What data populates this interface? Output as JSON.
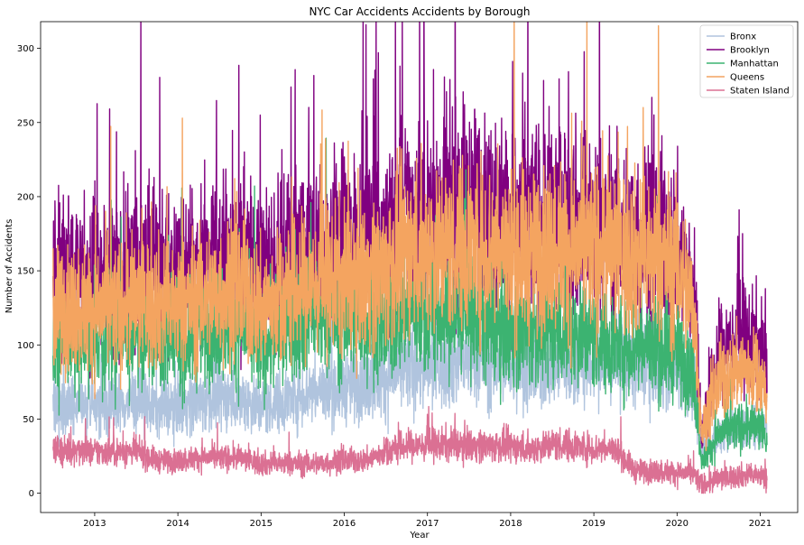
{
  "chart_data": {
    "type": "line",
    "title": "NYC Car Accidents Accidents by Borough",
    "xlabel": "Year",
    "ylabel": "Number of Accidents",
    "xlim": [
      2012.35,
      2021.45
    ],
    "ylim": [
      -13,
      318
    ],
    "xticks": [
      2013,
      2014,
      2015,
      2016,
      2017,
      2018,
      2019,
      2020,
      2021
    ],
    "yticks": [
      0,
      50,
      100,
      150,
      200,
      250,
      300
    ],
    "grid": false,
    "legend_position": "top-right",
    "x": [
      2012.5,
      2012.75,
      2013.0,
      2013.25,
      2013.5,
      2013.75,
      2014.0,
      2014.25,
      2014.5,
      2014.75,
      2015.0,
      2015.25,
      2015.5,
      2015.75,
      2016.0,
      2016.25,
      2016.5,
      2016.75,
      2017.0,
      2017.25,
      2017.5,
      2017.75,
      2018.0,
      2018.25,
      2018.5,
      2018.75,
      2019.0,
      2019.25,
      2019.5,
      2019.75,
      2020.0,
      2020.2,
      2020.3,
      2020.5,
      2020.75,
      2021.0,
      2021.08
    ],
    "series": [
      {
        "name": "Bronx",
        "color": "#b0c4de",
        "values": [
          60,
          58,
          60,
          60,
          62,
          58,
          60,
          62,
          65,
          65,
          58,
          62,
          68,
          70,
          72,
          75,
          78,
          85,
          85,
          88,
          90,
          88,
          88,
          85,
          88,
          88,
          88,
          88,
          90,
          90,
          88,
          70,
          30,
          40,
          45,
          45,
          42
        ]
      },
      {
        "name": "Brooklyn",
        "color": "#800080",
        "values": [
          150,
          152,
          150,
          150,
          155,
          150,
          152,
          155,
          160,
          165,
          150,
          155,
          165,
          168,
          170,
          172,
          180,
          190,
          190,
          192,
          195,
          190,
          188,
          185,
          190,
          185,
          180,
          178,
          175,
          172,
          165,
          140,
          40,
          95,
          105,
          100,
          80
        ]
      },
      {
        "name": "Manhattan",
        "color": "#3cb371",
        "values": [
          100,
          102,
          105,
          105,
          110,
          105,
          100,
          110,
          115,
          115,
          100,
          110,
          120,
          120,
          118,
          115,
          115,
          125,
          120,
          118,
          120,
          115,
          112,
          110,
          112,
          110,
          105,
          100,
          100,
          100,
          95,
          80,
          20,
          40,
          45,
          45,
          35
        ]
      },
      {
        "name": "Queens",
        "color": "#f4a460",
        "values": [
          125,
          125,
          125,
          125,
          130,
          128,
          125,
          132,
          135,
          138,
          125,
          132,
          140,
          142,
          145,
          148,
          150,
          165,
          165,
          165,
          168,
          165,
          165,
          160,
          168,
          165,
          165,
          165,
          160,
          158,
          155,
          125,
          40,
          75,
          85,
          80,
          60
        ]
      },
      {
        "name": "Staten Island",
        "color": "#db7093",
        "values": [
          30,
          28,
          28,
          28,
          28,
          22,
          22,
          24,
          24,
          24,
          20,
          20,
          20,
          20,
          22,
          22,
          28,
          32,
          32,
          33,
          33,
          32,
          32,
          30,
          33,
          32,
          30,
          30,
          15,
          15,
          14,
          13,
          5,
          10,
          12,
          12,
          8
        ]
      }
    ]
  }
}
